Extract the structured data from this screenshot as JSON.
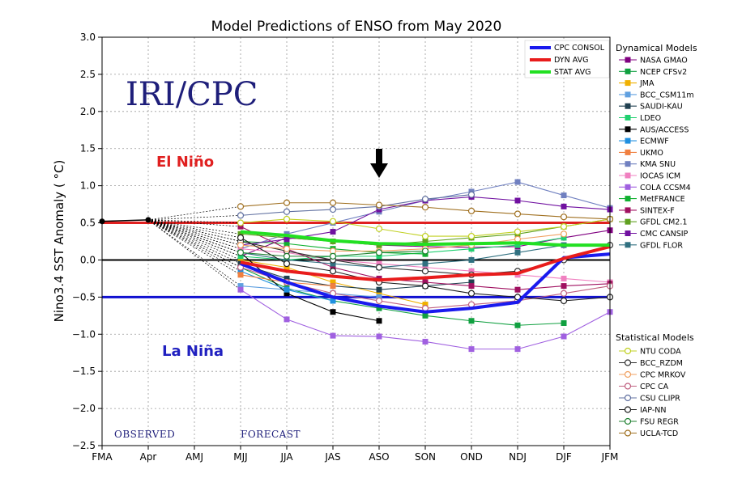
{
  "chart_data": {
    "type": "line",
    "title": "Model Predictions of ENSO from May 2020",
    "xlabel": "",
    "ylabel": "Nino3.4 SST Anomaly ( °C)",
    "ylim": [
      -2.5,
      3.0
    ],
    "yticks": [
      "3.0",
      "2.5",
      "2.0",
      "1.5",
      "1.0",
      "0.5",
      "0.0",
      "−0.5",
      "−1.0",
      "−1.5",
      "−2.0",
      "−2.5"
    ],
    "ytick_values": [
      3.0,
      2.5,
      2.0,
      1.5,
      1.0,
      0.5,
      0.0,
      -0.5,
      -1.0,
      -1.5,
      -2.0,
      -2.5
    ],
    "categories": [
      "FMA",
      "Apr",
      "AMJ",
      "MJJ",
      "JJA",
      "JAS",
      "ASO",
      "SON",
      "OND",
      "NDJ",
      "DJF",
      "JFM"
    ],
    "grid": true,
    "legend_position": "right",
    "annotations": {
      "brand": "IRI/CPC",
      "el_nino": "El Niño",
      "la_nina": "La Niña",
      "observed": "OBSERVED",
      "forecast": "FORECAST"
    },
    "thresholds": [
      {
        "value": 0.5,
        "color": "#e02020"
      },
      {
        "value": 0.0,
        "color": "#000000"
      },
      {
        "value": -0.5,
        "color": "#1010d0"
      }
    ],
    "arrow_at_category": "ASO",
    "observed": [
      0.52,
      0.54
    ],
    "averages": [
      {
        "name": "CPC CONSOL",
        "color": "#1a1aee",
        "values": [
          null,
          null,
          null,
          -0.05,
          -0.3,
          -0.5,
          -0.62,
          -0.7,
          -0.65,
          -0.57,
          0.03,
          0.08
        ]
      },
      {
        "name": "DYN AVG",
        "color": "#e81c1c",
        "values": [
          null,
          null,
          null,
          -0.03,
          -0.15,
          -0.22,
          -0.27,
          -0.24,
          -0.2,
          -0.18,
          0.02,
          0.18
        ]
      },
      {
        "name": "STAT AVG",
        "color": "#22e022",
        "values": [
          null,
          null,
          null,
          0.38,
          0.33,
          0.26,
          0.22,
          0.21,
          0.22,
          0.23,
          0.2,
          0.2
        ]
      }
    ],
    "dynamical_header": "Dynamical Models",
    "dynamical": [
      {
        "name": "NASA GMAO",
        "color": "#800080",
        "values": [
          null,
          null,
          null,
          0.05,
          0.3,
          0.25,
          0.2,
          0.18,
          0.17,
          0.18,
          0.3,
          0.4
        ]
      },
      {
        "name": "NCEP CFSv2",
        "color": "#10a040",
        "values": [
          null,
          null,
          null,
          -0.1,
          -0.38,
          -0.55,
          -0.65,
          -0.75,
          -0.82,
          -0.88,
          -0.85,
          null
        ]
      },
      {
        "name": "JMA",
        "color": "#f0b000",
        "values": [
          null,
          null,
          null,
          0.0,
          -0.1,
          -0.3,
          -0.45,
          -0.6,
          null,
          null,
          null,
          null
        ]
      },
      {
        "name": "BCC_CSM11m",
        "color": "#60a0e0",
        "values": [
          null,
          null,
          null,
          -0.35,
          -0.4,
          -0.45,
          -0.5,
          null,
          null,
          null,
          null,
          null
        ]
      },
      {
        "name": "SAUDI-KAU",
        "color": "#204050",
        "values": [
          null,
          null,
          null,
          -0.05,
          -0.25,
          -0.35,
          -0.4,
          -0.35,
          -0.3,
          null,
          null,
          null
        ]
      },
      {
        "name": "LDEO",
        "color": "#20d070",
        "values": [
          null,
          null,
          null,
          0.05,
          0.0,
          0.05,
          0.05,
          0.1,
          0.15,
          0.2,
          0.3,
          null
        ]
      },
      {
        "name": "AUS/ACCESS",
        "color": "#000000",
        "values": [
          null,
          null,
          null,
          0.1,
          -0.45,
          -0.7,
          -0.82,
          null,
          null,
          null,
          null,
          null
        ]
      },
      {
        "name": "ECMWF",
        "color": "#2090e0",
        "values": [
          null,
          null,
          null,
          -0.15,
          -0.4,
          -0.55,
          null,
          null,
          null,
          null,
          null,
          null
        ]
      },
      {
        "name": "UKMO",
        "color": "#f08040",
        "values": [
          null,
          null,
          null,
          -0.2,
          -0.3,
          -0.35,
          null,
          null,
          null,
          null,
          null,
          null
        ]
      },
      {
        "name": "KMA SNU",
        "color": "#7080c0",
        "values": [
          null,
          null,
          null,
          0.15,
          0.35,
          0.5,
          0.65,
          0.8,
          0.92,
          1.05,
          0.87,
          0.7
        ]
      },
      {
        "name": "IOCAS ICM",
        "color": "#f080c0",
        "values": [
          null,
          null,
          null,
          0.15,
          0.1,
          0.0,
          -0.05,
          -0.1,
          -0.15,
          -0.2,
          -0.25,
          -0.3
        ]
      },
      {
        "name": "COLA CCSM4",
        "color": "#a060e0",
        "values": [
          null,
          null,
          null,
          -0.4,
          -0.8,
          -1.02,
          -1.03,
          -1.1,
          -1.2,
          -1.2,
          -1.03,
          -0.7
        ]
      },
      {
        "name": "MetFRANCE",
        "color": "#10b030",
        "values": [
          null,
          null,
          null,
          0.25,
          0.22,
          0.15,
          0.1,
          0.08,
          null,
          null,
          null,
          null
        ]
      },
      {
        "name": "SINTEX-F",
        "color": "#a01060",
        "values": [
          null,
          null,
          null,
          0.45,
          0.15,
          -0.1,
          -0.25,
          -0.3,
          -0.35,
          -0.4,
          -0.35,
          -0.32
        ]
      },
      {
        "name": "GFDL CM2.1",
        "color": "#60a020",
        "values": [
          null,
          null,
          null,
          0.35,
          0.3,
          0.25,
          0.2,
          0.25,
          0.3,
          0.35,
          0.45,
          0.55
        ]
      },
      {
        "name": "CMC CANSIP",
        "color": "#7010a0",
        "values": [
          null,
          null,
          null,
          0.2,
          0.28,
          0.38,
          0.68,
          0.8,
          0.85,
          0.8,
          0.72,
          0.68
        ]
      },
      {
        "name": "GFDL FLOR",
        "color": "#307080",
        "values": [
          null,
          null,
          null,
          0.1,
          0.0,
          -0.05,
          -0.1,
          -0.05,
          0.0,
          0.1,
          0.2,
          null
        ]
      }
    ],
    "statistical_header": "Statistical Models",
    "statistical": [
      {
        "name": "NTU CODA",
        "color": "#c0d020",
        "values": [
          null,
          null,
          null,
          0.5,
          0.55,
          0.52,
          0.42,
          0.32,
          0.32,
          0.38,
          0.45,
          0.55
        ]
      },
      {
        "name": "BCC_RZDM",
        "color": "#303030",
        "values": [
          null,
          null,
          null,
          0.25,
          0.12,
          0.0,
          -0.1,
          -0.15,
          -0.2,
          -0.15,
          0.0,
          0.2
        ]
      },
      {
        "name": "CPC MRKOV",
        "color": "#f0a060",
        "values": [
          null,
          null,
          null,
          0.2,
          0.15,
          0.12,
          0.12,
          0.15,
          0.2,
          0.28,
          0.35,
          null
        ]
      },
      {
        "name": "CPC CA",
        "color": "#c06080",
        "values": [
          null,
          null,
          null,
          -0.1,
          -0.3,
          -0.45,
          -0.55,
          -0.65,
          -0.6,
          -0.55,
          -0.45,
          -0.35
        ]
      },
      {
        "name": "CSU CLIPR",
        "color": "#6070a0",
        "values": [
          null,
          null,
          null,
          0.6,
          0.65,
          0.68,
          0.72,
          0.82,
          0.88,
          null,
          null,
          null
        ]
      },
      {
        "name": "IAP-NN",
        "color": "#202020",
        "values": [
          null,
          null,
          null,
          0.3,
          -0.05,
          -0.15,
          -0.3,
          -0.35,
          -0.45,
          -0.5,
          -0.55,
          -0.5
        ]
      },
      {
        "name": "FSU REGR",
        "color": "#208030",
        "values": [
          null,
          null,
          null,
          0.1,
          0.05,
          0.05,
          0.1,
          0.12,
          null,
          null,
          null,
          null
        ]
      },
      {
        "name": "UCLA-TCD",
        "color": "#a07020",
        "values": [
          null,
          null,
          null,
          0.72,
          0.77,
          0.77,
          0.74,
          0.71,
          0.66,
          0.62,
          0.58,
          0.55
        ]
      }
    ]
  }
}
